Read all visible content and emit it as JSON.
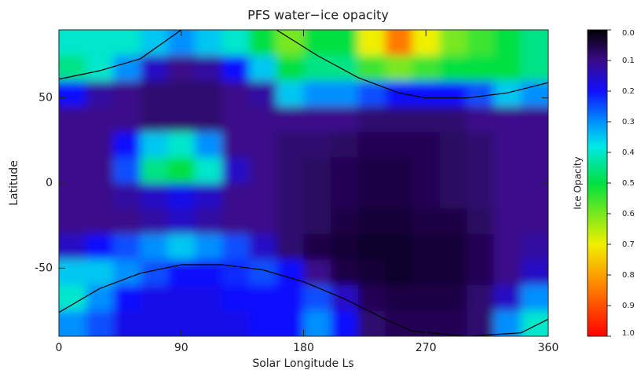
{
  "chart_data": {
    "type": "heatmap",
    "title": "PFS water−ice opacity",
    "x_label": "Solar Longitude Ls",
    "y_label": "Latitude",
    "colorbar_label": "Ice Opacity",
    "xlim": [
      0,
      360
    ],
    "xticks": [
      0,
      90,
      180,
      270,
      360
    ],
    "ylim": [
      -90,
      90
    ],
    "yticks": [
      50,
      0,
      -50
    ],
    "x_bins": [
      0,
      20,
      40,
      60,
      80,
      100,
      120,
      140,
      160,
      180,
      200,
      220,
      240,
      260,
      280,
      300,
      320,
      340,
      360
    ],
    "y_bins": [
      90,
      75,
      60,
      45,
      30,
      15,
      0,
      -15,
      -30,
      -45,
      -60,
      -75,
      -90
    ],
    "values": [
      [
        0.4,
        0.4,
        0.4,
        0.35,
        0.3,
        0.35,
        0.4,
        0.5,
        0.6,
        0.5,
        0.5,
        0.7,
        0.85,
        0.7,
        0.6,
        0.55,
        0.5,
        0.45
      ],
      [
        0.45,
        0.4,
        0.3,
        0.15,
        0.1,
        0.12,
        0.2,
        0.35,
        0.5,
        0.45,
        0.45,
        0.55,
        0.6,
        0.55,
        0.5,
        0.5,
        0.5,
        0.45
      ],
      [
        0.2,
        0.12,
        0.1,
        0.08,
        0.08,
        0.08,
        0.1,
        0.12,
        0.35,
        0.3,
        0.3,
        0.25,
        0.2,
        0.2,
        0.2,
        0.25,
        0.35,
        0.3
      ],
      [
        0.1,
        0.1,
        0.1,
        0.08,
        0.08,
        0.08,
        0.1,
        0.1,
        0.1,
        0.1,
        0.1,
        0.08,
        0.08,
        0.08,
        0.08,
        0.1,
        0.1,
        0.1
      ],
      [
        0.1,
        0.1,
        0.2,
        0.35,
        0.4,
        0.3,
        0.1,
        0.1,
        0.08,
        0.08,
        0.07,
        0.06,
        0.06,
        0.06,
        0.07,
        0.08,
        0.1,
        0.1
      ],
      [
        0.1,
        0.1,
        0.25,
        0.45,
        0.5,
        0.4,
        0.15,
        0.1,
        0.08,
        0.07,
        0.06,
        0.05,
        0.05,
        0.06,
        0.07,
        0.08,
        0.1,
        0.1
      ],
      [
        0.1,
        0.1,
        0.12,
        0.15,
        0.18,
        0.15,
        0.1,
        0.1,
        0.08,
        0.07,
        0.06,
        0.05,
        0.05,
        0.06,
        0.07,
        0.08,
        0.1,
        0.1
      ],
      [
        0.1,
        0.1,
        0.1,
        0.12,
        0.15,
        0.12,
        0.1,
        0.1,
        0.08,
        0.07,
        0.05,
        0.04,
        0.04,
        0.05,
        0.05,
        0.07,
        0.1,
        0.1
      ],
      [
        0.15,
        0.2,
        0.25,
        0.3,
        0.35,
        0.3,
        0.25,
        0.15,
        0.08,
        0.05,
        0.04,
        0.03,
        0.03,
        0.04,
        0.04,
        0.06,
        0.1,
        0.12
      ],
      [
        0.35,
        0.35,
        0.3,
        0.25,
        0.2,
        0.2,
        0.22,
        0.25,
        0.2,
        0.1,
        0.05,
        0.04,
        0.03,
        0.04,
        0.04,
        0.06,
        0.1,
        0.15
      ],
      [
        0.4,
        0.3,
        0.2,
        0.18,
        0.18,
        0.18,
        0.2,
        0.2,
        0.2,
        0.25,
        0.15,
        0.06,
        0.05,
        0.05,
        0.05,
        0.08,
        0.15,
        0.3
      ],
      [
        0.3,
        0.25,
        0.18,
        0.18,
        0.18,
        0.18,
        0.18,
        0.2,
        0.2,
        0.3,
        0.2,
        0.08,
        0.06,
        0.06,
        0.06,
        0.08,
        0.3,
        0.4
      ]
    ],
    "colorbar_lim": [
      0,
      1
    ],
    "colorbar_ticks": [
      {
        "value": 0,
        "label": "0.0"
      },
      {
        "value": 0.1,
        "label": "0.1"
      },
      {
        "value": 0.2,
        "label": "0.2"
      },
      {
        "value": 0.3,
        "label": "0.3"
      },
      {
        "value": 0.4,
        "label": "0.4"
      },
      {
        "value": 0.5,
        "label": "0.5"
      },
      {
        "value": 0.6,
        "label": "0.6"
      },
      {
        "value": 0.7,
        "label": "0.7"
      },
      {
        "value": 0.8,
        "label": "0.8"
      },
      {
        "value": 0.9,
        "label": "0.9"
      },
      {
        "value": 1,
        "label": "1.0"
      }
    ],
    "colormap": [
      {
        "value": 0,
        "color": "#000000"
      },
      {
        "value": 0.1,
        "color": "#3a0a8a"
      },
      {
        "value": 0.2,
        "color": "#1010ff"
      },
      {
        "value": 0.3,
        "color": "#0090ff"
      },
      {
        "value": 0.38,
        "color": "#00e8e8"
      },
      {
        "value": 0.5,
        "color": "#00e040"
      },
      {
        "value": 0.7,
        "color": "#f0f000"
      },
      {
        "value": 0.82,
        "color": "#ff9000"
      },
      {
        "value": 1,
        "color": "#ff0000"
      }
    ],
    "curves": [
      {
        "color": "#000000",
        "x": [
          0,
          30,
          60,
          90,
          125,
          160,
          190,
          220,
          250,
          270,
          300,
          330,
          360
        ],
        "y": [
          61,
          66,
          73,
          90,
          null,
          90,
          75,
          62,
          53,
          50,
          50,
          53,
          59
        ]
      },
      {
        "color": "#000000",
        "x": [
          0,
          30,
          60,
          90,
          120,
          150,
          180,
          210,
          240,
          260,
          300,
          340,
          360
        ],
        "y": [
          -76,
          -62,
          -53,
          -48,
          -48,
          -51,
          -58,
          -68,
          -80,
          -87,
          -90,
          -88,
          -80
        ]
      }
    ]
  }
}
